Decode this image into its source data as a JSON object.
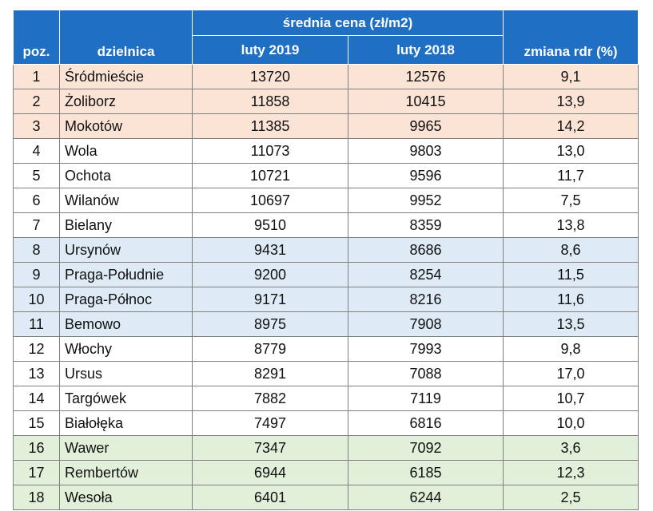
{
  "header": {
    "pos_label": "poz.",
    "district_label": "dzielnica",
    "price_group_label": "średnia cena (zł/m2)",
    "col_2019_label": "luty 2019",
    "col_2018_label": "luty 2018",
    "change_label": "zmiana rdr (%)"
  },
  "colors": {
    "header_bg": "#1f6fc5",
    "tier_top": "#fbe4d6",
    "tier_blue": "#deebf6",
    "tier_green": "#e2efd9"
  },
  "rows": [
    {
      "pos": "1",
      "district": "Śródmieście",
      "p2019": "13720",
      "p2018": "12576",
      "change": "9,1",
      "tier": "top"
    },
    {
      "pos": "2",
      "district": "Żoliborz",
      "p2019": "11858",
      "p2018": "10415",
      "change": "13,9",
      "tier": "top"
    },
    {
      "pos": "3",
      "district": "Mokotów",
      "p2019": "11385",
      "p2018": "9965",
      "change": "14,2",
      "tier": "top"
    },
    {
      "pos": "4",
      "district": "Wola",
      "p2019": "11073",
      "p2018": "9803",
      "change": "13,0",
      "tier": "mid"
    },
    {
      "pos": "5",
      "district": "Ochota",
      "p2019": "10721",
      "p2018": "9596",
      "change": "11,7",
      "tier": "mid"
    },
    {
      "pos": "6",
      "district": "Wilanów",
      "p2019": "10697",
      "p2018": "9952",
      "change": "7,5",
      "tier": "mid"
    },
    {
      "pos": "7",
      "district": "Bielany",
      "p2019": "9510",
      "p2018": "8359",
      "change": "13,8",
      "tier": "mid"
    },
    {
      "pos": "8",
      "district": "Ursynów",
      "p2019": "9431",
      "p2018": "8686",
      "change": "8,6",
      "tier": "blue"
    },
    {
      "pos": "9",
      "district": "Praga-Południe",
      "p2019": "9200",
      "p2018": "8254",
      "change": "11,5",
      "tier": "blue"
    },
    {
      "pos": "10",
      "district": "Praga-Północ",
      "p2019": "9171",
      "p2018": "8216",
      "change": "11,6",
      "tier": "blue"
    },
    {
      "pos": "11",
      "district": "Bemowo",
      "p2019": "8975",
      "p2018": "7908",
      "change": "13,5",
      "tier": "blue"
    },
    {
      "pos": "12",
      "district": "Włochy",
      "p2019": "8779",
      "p2018": "7993",
      "change": "9,8",
      "tier": "mid"
    },
    {
      "pos": "13",
      "district": "Ursus",
      "p2019": "8291",
      "p2018": "7088",
      "change": "17,0",
      "tier": "mid"
    },
    {
      "pos": "14",
      "district": "Targówek",
      "p2019": "7882",
      "p2018": "7119",
      "change": "10,7",
      "tier": "mid"
    },
    {
      "pos": "15",
      "district": "Białołęka",
      "p2019": "7497",
      "p2018": "6816",
      "change": "10,0",
      "tier": "mid"
    },
    {
      "pos": "16",
      "district": "Wawer",
      "p2019": "7347",
      "p2018": "7092",
      "change": "3,6",
      "tier": "green"
    },
    {
      "pos": "17",
      "district": "Rembertów",
      "p2019": "6944",
      "p2018": "6185",
      "change": "12,3",
      "tier": "green"
    },
    {
      "pos": "18",
      "district": "Wesoła",
      "p2019": "6401",
      "p2018": "6244",
      "change": "2,5",
      "tier": "green"
    }
  ]
}
